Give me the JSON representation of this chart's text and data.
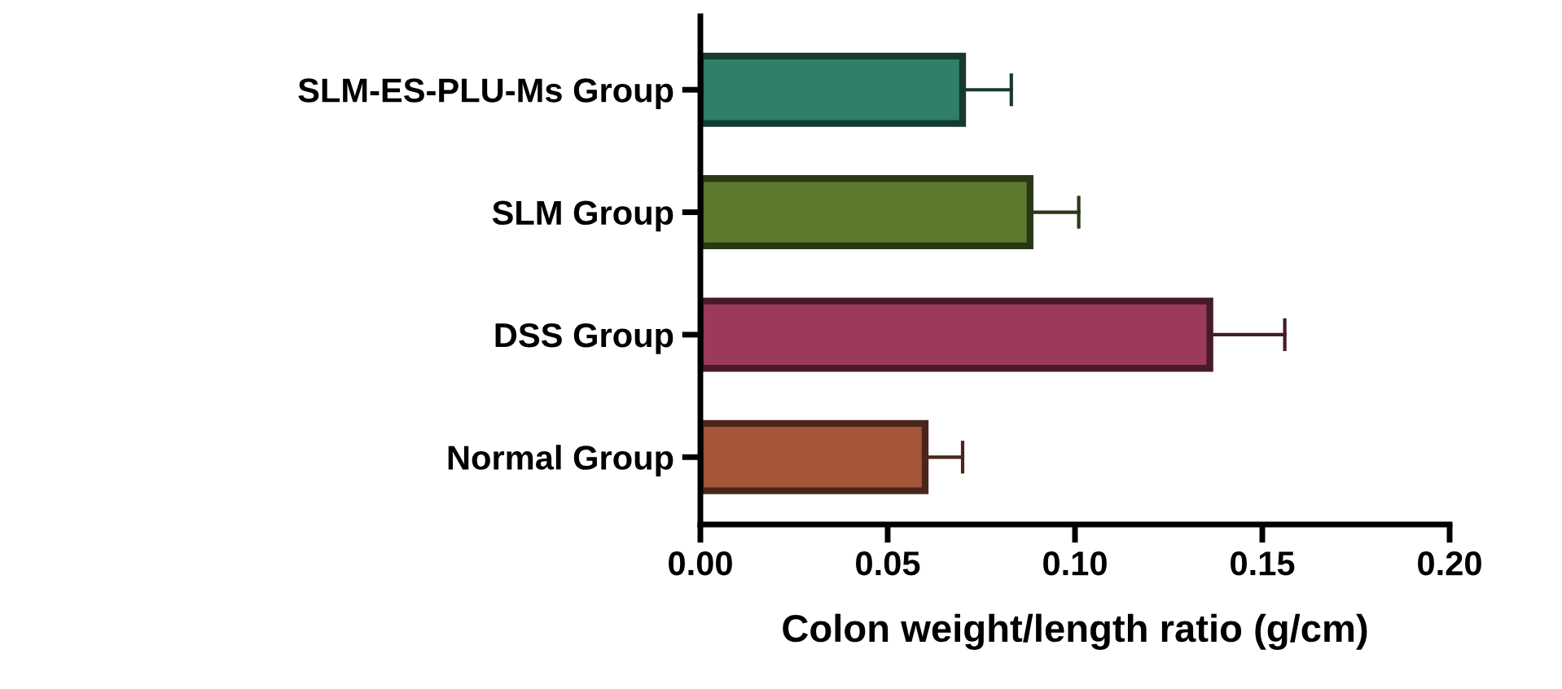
{
  "chart_data": {
    "type": "bar",
    "orientation": "horizontal",
    "xlabel": "Colon weight/length ratio (g/cm)",
    "categories": [
      "SLM-ES-PLU-Ms Group",
      "SLM Group",
      "DSS Group",
      "Normal Group"
    ],
    "values": [
      0.07,
      0.088,
      0.136,
      0.06
    ],
    "errors": [
      [
        0.07,
        0.083
      ],
      [
        0.088,
        0.101
      ],
      [
        0.136,
        0.156
      ],
      [
        0.06,
        0.07
      ]
    ],
    "colors": [
      "#2e8068",
      "#5e7a2e",
      "#9c3a5c",
      "#a5553a"
    ],
    "xlim": [
      0,
      0.2
    ],
    "xticks": [
      {
        "value": 0,
        "label": "0.00"
      },
      {
        "value": 0.05,
        "label": "0.05"
      },
      {
        "value": 0.1,
        "label": "0.10"
      },
      {
        "value": 0.15,
        "label": "0.15"
      },
      {
        "value": 0.2,
        "label": "0.20"
      }
    ],
    "grid": false,
    "legend": false
  }
}
